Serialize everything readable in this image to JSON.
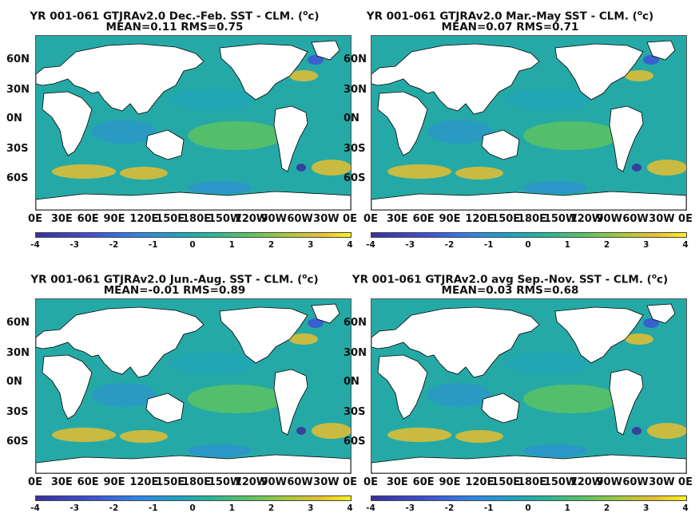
{
  "panels": [
    {
      "title_prefix": "YR 001-061 GTJRAv2.0  Dec.-Feb. SST - CLM. (",
      "title_unit": "o",
      "title_suffix": "c)",
      "stats": "MEAN=0.11   RMS=0.75"
    },
    {
      "title_prefix": "YR 001-061 GTJRAv2.0 Mar.-May SST - CLM. (",
      "title_unit": "o",
      "title_suffix": "c)",
      "stats": "MEAN=0.07   RMS=0.71"
    },
    {
      "title_prefix": "YR 001-061 GTJRAv2.0 Jun.-Aug. SST - CLM. (",
      "title_unit": "o",
      "title_suffix": "c)",
      "stats": "MEAN=-0.01   RMS=0.89"
    },
    {
      "title_prefix": "YR 001-061 GTJRAv2.0 avg Sep.-Nov. SST - CLM. (",
      "title_unit": "o",
      "title_suffix": "c)",
      "stats": "MEAN=0.03   RMS=0.68"
    }
  ],
  "lat_labels": [
    "60N",
    "30N",
    "0N",
    "30S",
    "60S"
  ],
  "lon_labels": [
    "0E",
    "30E",
    "60E",
    "90E",
    "120E",
    "150E",
    "180E",
    "150W",
    "120W",
    "90W",
    "60W",
    "30W",
    "0E"
  ],
  "colorbar_ticks": [
    "-4",
    "-3",
    "-2",
    "-1",
    "0",
    "1",
    "2",
    "3",
    "4"
  ],
  "colors": {
    "ocean_mid": "#25a9a6",
    "land": "#ffffff",
    "cold": "#3b2f9c",
    "warm": "#f9f21b"
  }
}
